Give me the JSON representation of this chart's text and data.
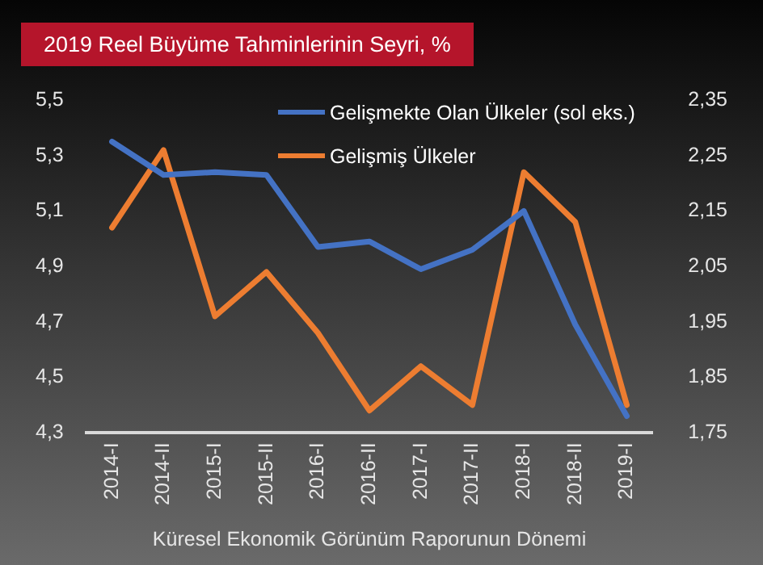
{
  "chart_data": {
    "type": "line",
    "title": "2019 Reel Büyüme Tahminlerinin Seyri, %",
    "xlabel": "Küresel Ekonomik Görünüm Raporunun Dönemi",
    "categories": [
      "2014-I",
      "2014-II",
      "2015-I",
      "2015-II",
      "2016-I",
      "2016-II",
      "2017-I",
      "2017-II",
      "2018-I",
      "2018-II",
      "2019-I"
    ],
    "series": [
      {
        "name": "Gelişmekte Olan Ülkeler (sol eks.)",
        "color": "#4472c4",
        "values": [
          5.35,
          5.23,
          5.24,
          5.23,
          4.97,
          4.99,
          4.89,
          4.96,
          5.1,
          4.69,
          4.36
        ]
      },
      {
        "name": "Gelişmiş Ülkeler",
        "color": "#ed7d31",
        "axis": "y2",
        "values": [
          2.12,
          2.26,
          1.96,
          2.04,
          1.93,
          1.79,
          1.87,
          1.8,
          2.22,
          2.13,
          1.8
        ]
      }
    ],
    "ylim": [
      4.3,
      5.5
    ],
    "yticks": [
      {
        "value": 4.3,
        "label": "4,3"
      },
      {
        "value": 4.5,
        "label": "4,5"
      },
      {
        "value": 4.7,
        "label": "4,7"
      },
      {
        "value": 4.9,
        "label": "4,9"
      },
      {
        "value": 5.1,
        "label": "5,1"
      },
      {
        "value": 5.3,
        "label": "5,3"
      },
      {
        "value": 5.5,
        "label": "5,5"
      }
    ],
    "y2lim": [
      1.75,
      2.35
    ],
    "y2ticks": [
      {
        "value": 1.75,
        "label": "1,75"
      },
      {
        "value": 1.85,
        "label": "1,85"
      },
      {
        "value": 1.95,
        "label": "1,95"
      },
      {
        "value": 2.05,
        "label": "2,05"
      },
      {
        "value": 2.15,
        "label": "2,15"
      },
      {
        "value": 2.25,
        "label": "2,25"
      },
      {
        "value": 2.35,
        "label": "2,35"
      }
    ],
    "grid": false,
    "legend": "top",
    "marker": "none",
    "line_style": "solid"
  }
}
